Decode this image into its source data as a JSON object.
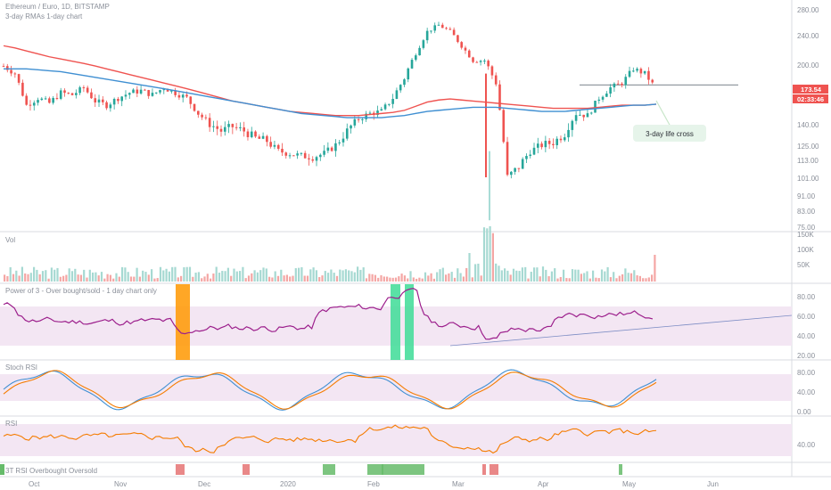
{
  "header": {
    "symbol_line": "Ethereum / Euro, 1D, BITSTAMP",
    "study_line": "3-day RMAs 1-day chart"
  },
  "colors": {
    "up": "#26a69a",
    "down": "#ef5350",
    "up_light": "#a6d9d2",
    "down_light": "#f4a6a4",
    "rma_fast": "#ef5350",
    "rma_slow": "#3f8fd2",
    "power3": "#9c1f8c",
    "stoch_k": "#3f8fd2",
    "stoch_d": "#f57c00",
    "rsi": "#f57c00",
    "band_fill": "#f3e6f3",
    "highlight_orange": "#ff9800",
    "highlight_green": "#3ddc97"
  },
  "callout": {
    "label": "3-day life cross"
  },
  "price_axis": {
    "ticks": [
      "280.00",
      "240.00",
      "200.00",
      "173.54",
      "140.00",
      "125.00",
      "113.00",
      "101.00",
      "91.00",
      "83.00",
      "75.00"
    ],
    "last_price": "173.54",
    "countdown": "02:33:46"
  },
  "volume_axis": {
    "ticks": [
      "150K",
      "100K",
      "50K"
    ]
  },
  "osc_axis": {
    "ticks": [
      "80.00",
      "60.00",
      "40.00",
      "20.00"
    ]
  },
  "stoch_axis": {
    "ticks": [
      "80.00",
      "40.00",
      "0.00"
    ]
  },
  "rsi_axis": {
    "ticks": [
      "40.00"
    ]
  },
  "time_axis": {
    "labels": [
      "Oct",
      "Nov",
      "Dec",
      "2020",
      "Feb",
      "Mar",
      "Apr",
      "May",
      "Jun"
    ]
  },
  "panes": {
    "volume": "Vol",
    "power3": "Power of 3 - Over bought/sold - 1 day chart only",
    "stoch": "Stoch RSI",
    "rsi": "RSI",
    "obos": "3T RSI Overbought Oversold"
  },
  "chart_data": {
    "type": "candlestick",
    "title": "Ethereum / Euro, 1D, BITSTAMP",
    "price_range": [
      75,
      280
    ],
    "close_series": [
      {
        "x": "Sep",
        "close": 198
      },
      {
        "x": "Sep",
        "close": 190
      },
      {
        "x": "Sep",
        "close": 158
      },
      {
        "x": "Sep",
        "close": 165
      },
      {
        "x": "Oct",
        "close": 160
      },
      {
        "x": "Oct",
        "close": 170
      },
      {
        "x": "Oct",
        "close": 168
      },
      {
        "x": "Oct",
        "close": 175
      },
      {
        "x": "Oct",
        "close": 162
      },
      {
        "x": "Oct",
        "close": 158
      },
      {
        "x": "Oct",
        "close": 165
      },
      {
        "x": "Oct",
        "close": 170
      },
      {
        "x": "Nov",
        "close": 172
      },
      {
        "x": "Nov",
        "close": 168
      },
      {
        "x": "Nov",
        "close": 175
      },
      {
        "x": "Nov",
        "close": 170
      },
      {
        "x": "Nov",
        "close": 165
      },
      {
        "x": "Nov",
        "close": 150
      },
      {
        "x": "Nov",
        "close": 140
      },
      {
        "x": "Nov",
        "close": 135
      },
      {
        "x": "Dec",
        "close": 138
      },
      {
        "x": "Dec",
        "close": 135
      },
      {
        "x": "Dec",
        "close": 130
      },
      {
        "x": "Dec",
        "close": 128
      },
      {
        "x": "Dec",
        "close": 120
      },
      {
        "x": "Dec",
        "close": 118
      },
      {
        "x": "Dec",
        "close": 116
      },
      {
        "x": "Dec",
        "close": 115
      },
      {
        "x": "2020",
        "close": 118
      },
      {
        "x": "2020",
        "close": 125
      },
      {
        "x": "2020",
        "close": 135
      },
      {
        "x": "2020",
        "close": 145
      },
      {
        "x": "2020",
        "close": 150
      },
      {
        "x": "2020",
        "close": 152
      },
      {
        "x": "Feb",
        "close": 165
      },
      {
        "x": "Feb",
        "close": 185
      },
      {
        "x": "Feb",
        "close": 215
      },
      {
        "x": "Feb",
        "close": 245
      },
      {
        "x": "Feb",
        "close": 255
      },
      {
        "x": "Feb",
        "close": 245
      },
      {
        "x": "Feb",
        "close": 225
      },
      {
        "x": "Feb",
        "close": 205
      },
      {
        "x": "Mar",
        "close": 205
      },
      {
        "x": "Mar",
        "close": 180
      },
      {
        "x": "Mar",
        "close": 101
      },
      {
        "x": "Mar",
        "close": 108
      },
      {
        "x": "Mar",
        "close": 120
      },
      {
        "x": "Mar",
        "close": 125
      },
      {
        "x": "Apr",
        "close": 127
      },
      {
        "x": "Apr",
        "close": 133
      },
      {
        "x": "Apr",
        "close": 150
      },
      {
        "x": "Apr",
        "close": 148
      },
      {
        "x": "Apr",
        "close": 165
      },
      {
        "x": "Apr",
        "close": 175
      },
      {
        "x": "May",
        "close": 180
      },
      {
        "x": "May",
        "close": 195
      },
      {
        "x": "May",
        "close": 190
      },
      {
        "x": "May",
        "close": 173.54
      }
    ],
    "series": [
      {
        "name": "RMA fast (red)",
        "values": [
          225,
          222,
          218,
          214,
          210,
          207,
          204,
          201,
          198,
          195,
          192,
          189,
          186,
          183,
          180,
          177,
          174,
          171,
          168,
          165,
          162,
          160,
          158,
          156,
          154,
          152,
          151,
          150,
          149,
          148,
          148,
          148,
          149,
          150,
          151,
          153,
          157,
          161,
          163,
          164,
          163,
          162,
          161,
          160,
          159,
          158,
          157,
          156,
          155,
          155,
          155,
          155,
          156,
          157,
          158,
          158,
          158,
          159
        ]
      },
      {
        "name": "RMA slow (blue)",
        "values": [
          195,
          195,
          195,
          194,
          193,
          192,
          190,
          188,
          186,
          184,
          182,
          180,
          178,
          176,
          174,
          172,
          170,
          168,
          166,
          164,
          162,
          160,
          158,
          156,
          154,
          152,
          150,
          149,
          148,
          147,
          146,
          146,
          146,
          146,
          147,
          148,
          150,
          152,
          153,
          154,
          155,
          156,
          156,
          156,
          155,
          154,
          153,
          152,
          152,
          152,
          153,
          154,
          155,
          156,
          157,
          158,
          158,
          159
        ]
      }
    ]
  }
}
